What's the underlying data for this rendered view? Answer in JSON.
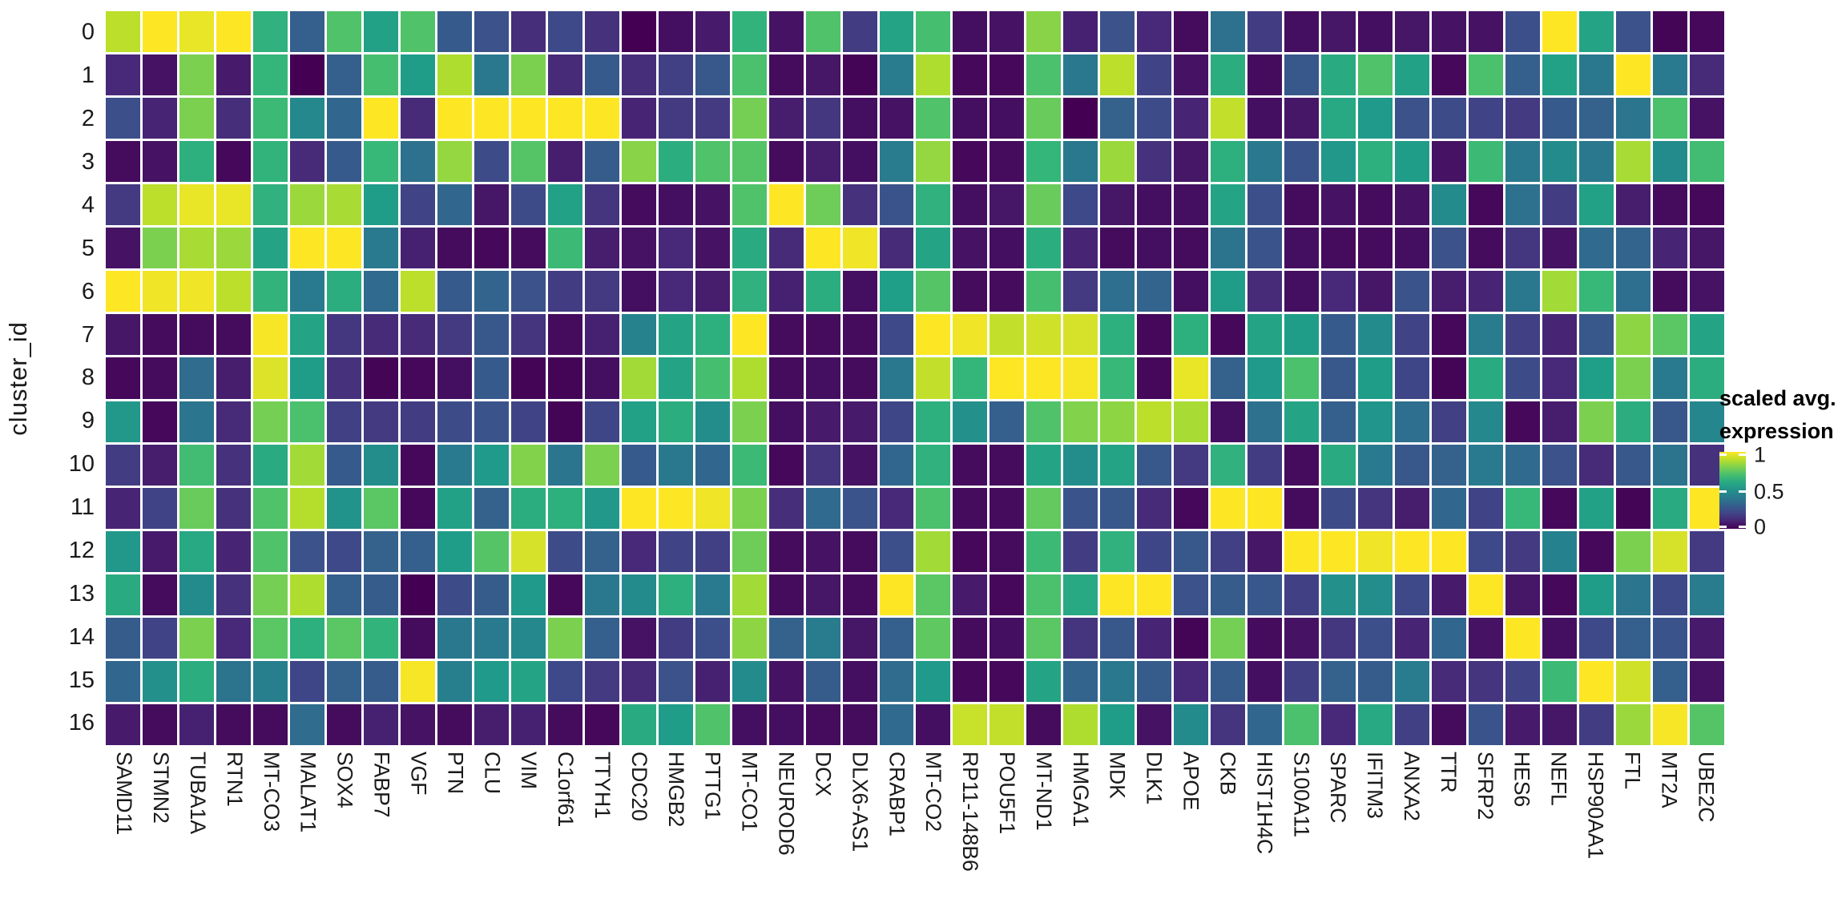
{
  "figure": {
    "y_axis_title": "cluster_id"
  },
  "legend": {
    "title_line1": "scaled avg.",
    "title_line2": "expression",
    "tick_labels": [
      "1",
      "0.5",
      "0"
    ]
  },
  "colors": {
    "background": "#ffffff",
    "viridis_low": "#440154",
    "viridis_mid": "#21918c",
    "viridis_high": "#fde725"
  },
  "chart_data": {
    "type": "heatmap",
    "title": "",
    "xlabel": "",
    "ylabel": "cluster_id",
    "legend_title": "scaled avg. expression",
    "colormap": "viridis",
    "value_range": [
      0,
      1
    ],
    "color_scale_ticks": [
      1,
      0.5,
      0
    ],
    "grid": false,
    "legend_position": "right",
    "x_categories": [
      "SAMD11",
      "STMN2",
      "TUBA1A",
      "RTN1",
      "MT-CO3",
      "MALAT1",
      "SOX4",
      "FABP7",
      "VGF",
      "PTN",
      "CLU",
      "VIM",
      "C1orf61",
      "TTYH1",
      "CDC20",
      "HMGB2",
      "PTTG1",
      "MT-CO1",
      "NEUROD6",
      "DCX",
      "DLX6-AS1",
      "CRABP1",
      "MT-CO2",
      "RP11-148B6",
      "POU5F1",
      "MT-ND1",
      "HMGA1",
      "MDK",
      "DLK1",
      "APOE",
      "CKB",
      "HIST1H4C",
      "S100A11",
      "SPARC",
      "IFITM3",
      "ANXA2",
      "TTR",
      "SFRP2",
      "HES6",
      "NEFL",
      "HSP90AA1",
      "FTL",
      "MT2A",
      "UBE2C"
    ],
    "y_categories": [
      "0",
      "1",
      "2",
      "3",
      "4",
      "5",
      "6",
      "7",
      "8",
      "9",
      "10",
      "11",
      "12",
      "13",
      "14",
      "15",
      "16"
    ],
    "values": [
      [
        0.9,
        1.0,
        0.97,
        1.0,
        0.64,
        0.3,
        0.72,
        0.57,
        0.72,
        0.28,
        0.25,
        0.13,
        0.22,
        0.14,
        0.0,
        0.04,
        0.07,
        0.65,
        0.05,
        0.72,
        0.18,
        0.58,
        0.7,
        0.04,
        0.05,
        0.82,
        0.09,
        0.25,
        0.11,
        0.03,
        0.37,
        0.18,
        0.04,
        0.06,
        0.04,
        0.06,
        0.05,
        0.05,
        0.24,
        1.0,
        0.58,
        0.25,
        0.01,
        0.02
      ],
      [
        0.11,
        0.05,
        0.8,
        0.07,
        0.66,
        0.0,
        0.3,
        0.7,
        0.55,
        0.88,
        0.4,
        0.8,
        0.12,
        0.28,
        0.13,
        0.19,
        0.27,
        0.71,
        0.03,
        0.06,
        0.01,
        0.42,
        0.88,
        0.02,
        0.02,
        0.71,
        0.4,
        0.9,
        0.2,
        0.05,
        0.62,
        0.03,
        0.27,
        0.61,
        0.72,
        0.57,
        0.02,
        0.71,
        0.3,
        0.57,
        0.4,
        1.0,
        0.41,
        0.12
      ],
      [
        0.24,
        0.1,
        0.8,
        0.13,
        0.68,
        0.47,
        0.33,
        1.0,
        0.12,
        1.0,
        1.0,
        1.0,
        1.0,
        1.0,
        0.1,
        0.17,
        0.17,
        0.79,
        0.08,
        0.16,
        0.04,
        0.05,
        0.72,
        0.04,
        0.04,
        0.77,
        0.0,
        0.31,
        0.23,
        0.1,
        0.91,
        0.04,
        0.06,
        0.6,
        0.54,
        0.25,
        0.23,
        0.2,
        0.17,
        0.28,
        0.31,
        0.39,
        0.71,
        0.05
      ],
      [
        0.03,
        0.05,
        0.63,
        0.02,
        0.65,
        0.12,
        0.28,
        0.67,
        0.37,
        0.84,
        0.23,
        0.73,
        0.08,
        0.29,
        0.82,
        0.62,
        0.72,
        0.73,
        0.03,
        0.08,
        0.04,
        0.42,
        0.84,
        0.02,
        0.03,
        0.66,
        0.4,
        0.85,
        0.14,
        0.06,
        0.63,
        0.4,
        0.26,
        0.53,
        0.63,
        0.55,
        0.05,
        0.68,
        0.4,
        0.48,
        0.4,
        0.87,
        0.48,
        0.69
      ],
      [
        0.17,
        0.9,
        0.97,
        0.97,
        0.64,
        0.85,
        0.87,
        0.55,
        0.2,
        0.33,
        0.06,
        0.23,
        0.57,
        0.15,
        0.03,
        0.04,
        0.05,
        0.72,
        1.0,
        0.78,
        0.14,
        0.26,
        0.64,
        0.04,
        0.06,
        0.77,
        0.22,
        0.06,
        0.04,
        0.04,
        0.58,
        0.24,
        0.03,
        0.05,
        0.03,
        0.05,
        0.48,
        0.02,
        0.37,
        0.18,
        0.57,
        0.08,
        0.03,
        0.02
      ],
      [
        0.05,
        0.8,
        0.87,
        0.85,
        0.58,
        1.0,
        1.0,
        0.41,
        0.09,
        0.03,
        0.02,
        0.03,
        0.68,
        0.08,
        0.05,
        0.11,
        0.05,
        0.61,
        0.12,
        1.0,
        0.98,
        0.12,
        0.58,
        0.05,
        0.04,
        0.62,
        0.1,
        0.03,
        0.04,
        0.03,
        0.38,
        0.26,
        0.04,
        0.03,
        0.03,
        0.04,
        0.25,
        0.03,
        0.16,
        0.05,
        0.34,
        0.32,
        0.1,
        0.06
      ],
      [
        1.0,
        0.98,
        0.98,
        0.9,
        0.65,
        0.41,
        0.62,
        0.34,
        0.9,
        0.28,
        0.32,
        0.25,
        0.18,
        0.17,
        0.04,
        0.11,
        0.08,
        0.64,
        0.09,
        0.62,
        0.04,
        0.56,
        0.73,
        0.03,
        0.03,
        0.7,
        0.17,
        0.36,
        0.32,
        0.04,
        0.55,
        0.12,
        0.04,
        0.11,
        0.06,
        0.26,
        0.08,
        0.1,
        0.4,
        0.86,
        0.67,
        0.36,
        0.03,
        0.05
      ],
      [
        0.06,
        0.03,
        0.03,
        0.03,
        0.99,
        0.58,
        0.16,
        0.12,
        0.12,
        0.17,
        0.27,
        0.15,
        0.03,
        0.09,
        0.45,
        0.58,
        0.63,
        1.0,
        0.03,
        0.03,
        0.03,
        0.22,
        1.0,
        0.98,
        0.91,
        0.93,
        0.94,
        0.63,
        0.02,
        0.63,
        0.02,
        0.58,
        0.55,
        0.28,
        0.48,
        0.2,
        0.02,
        0.42,
        0.19,
        0.1,
        0.27,
        0.83,
        0.74,
        0.58
      ],
      [
        0.02,
        0.03,
        0.35,
        0.08,
        0.95,
        0.55,
        0.14,
        0.01,
        0.02,
        0.04,
        0.28,
        0.01,
        0.01,
        0.04,
        0.86,
        0.58,
        0.7,
        0.88,
        0.03,
        0.04,
        0.03,
        0.4,
        0.91,
        0.66,
        1.0,
        1.0,
        0.99,
        0.67,
        0.02,
        0.97,
        0.31,
        0.54,
        0.71,
        0.27,
        0.55,
        0.21,
        0.01,
        0.61,
        0.23,
        0.11,
        0.56,
        0.8,
        0.41,
        0.62
      ],
      [
        0.53,
        0.02,
        0.39,
        0.12,
        0.79,
        0.71,
        0.19,
        0.17,
        0.18,
        0.23,
        0.26,
        0.2,
        0.01,
        0.21,
        0.57,
        0.62,
        0.49,
        0.8,
        0.04,
        0.07,
        0.07,
        0.21,
        0.63,
        0.5,
        0.3,
        0.72,
        0.81,
        0.83,
        0.9,
        0.87,
        0.04,
        0.37,
        0.58,
        0.3,
        0.52,
        0.36,
        0.19,
        0.47,
        0.02,
        0.08,
        0.8,
        0.62,
        0.27,
        0.46
      ],
      [
        0.18,
        0.08,
        0.69,
        0.14,
        0.61,
        0.86,
        0.28,
        0.49,
        0.02,
        0.41,
        0.54,
        0.81,
        0.39,
        0.8,
        0.28,
        0.4,
        0.33,
        0.68,
        0.02,
        0.15,
        0.05,
        0.33,
        0.64,
        0.03,
        0.03,
        0.58,
        0.49,
        0.58,
        0.27,
        0.17,
        0.64,
        0.18,
        0.03,
        0.61,
        0.41,
        0.27,
        0.31,
        0.41,
        0.34,
        0.25,
        0.12,
        0.27,
        0.38,
        0.14
      ],
      [
        0.1,
        0.2,
        0.77,
        0.14,
        0.72,
        0.89,
        0.51,
        0.74,
        0.02,
        0.57,
        0.31,
        0.62,
        0.63,
        0.53,
        1.0,
        1.0,
        0.98,
        0.8,
        0.13,
        0.34,
        0.26,
        0.11,
        0.71,
        0.03,
        0.03,
        0.76,
        0.26,
        0.27,
        0.12,
        0.02,
        1.0,
        1.0,
        0.03,
        0.23,
        0.15,
        0.08,
        0.33,
        0.2,
        0.67,
        0.02,
        0.57,
        0.01,
        0.61,
        1.0
      ],
      [
        0.53,
        0.07,
        0.6,
        0.1,
        0.72,
        0.25,
        0.22,
        0.31,
        0.3,
        0.55,
        0.73,
        0.94,
        0.23,
        0.31,
        0.11,
        0.2,
        0.19,
        0.78,
        0.03,
        0.05,
        0.03,
        0.24,
        0.86,
        0.02,
        0.03,
        0.68,
        0.18,
        0.64,
        0.21,
        0.27,
        0.19,
        0.06,
        1.0,
        1.0,
        0.98,
        1.0,
        1.0,
        0.22,
        0.17,
        0.44,
        0.02,
        0.8,
        0.94,
        0.17
      ],
      [
        0.61,
        0.03,
        0.48,
        0.14,
        0.79,
        0.88,
        0.3,
        0.29,
        0.0,
        0.23,
        0.29,
        0.54,
        0.02,
        0.4,
        0.48,
        0.63,
        0.41,
        0.86,
        0.03,
        0.06,
        0.03,
        1.0,
        0.74,
        0.07,
        0.02,
        0.71,
        0.6,
        1.0,
        1.0,
        0.25,
        0.29,
        0.27,
        0.19,
        0.5,
        0.49,
        0.22,
        0.07,
        1.0,
        0.06,
        0.02,
        0.55,
        0.39,
        0.22,
        0.42
      ],
      [
        0.29,
        0.2,
        0.8,
        0.11,
        0.74,
        0.63,
        0.74,
        0.65,
        0.03,
        0.4,
        0.41,
        0.47,
        0.8,
        0.3,
        0.05,
        0.18,
        0.24,
        0.83,
        0.31,
        0.42,
        0.06,
        0.3,
        0.75,
        0.03,
        0.04,
        0.74,
        0.15,
        0.27,
        0.1,
        0.01,
        0.79,
        0.03,
        0.05,
        0.16,
        0.24,
        0.1,
        0.33,
        0.05,
        1.0,
        0.04,
        0.22,
        0.3,
        0.26,
        0.07
      ],
      [
        0.33,
        0.5,
        0.62,
        0.38,
        0.43,
        0.21,
        0.31,
        0.29,
        0.99,
        0.43,
        0.54,
        0.58,
        0.22,
        0.17,
        0.12,
        0.25,
        0.09,
        0.48,
        0.05,
        0.29,
        0.04,
        0.35,
        0.54,
        0.02,
        0.02,
        0.58,
        0.32,
        0.4,
        0.29,
        0.11,
        0.29,
        0.04,
        0.19,
        0.31,
        0.29,
        0.42,
        0.12,
        0.15,
        0.2,
        0.68,
        1.0,
        0.93,
        0.3,
        0.05
      ],
      [
        0.07,
        0.03,
        0.09,
        0.03,
        0.03,
        0.35,
        0.03,
        0.09,
        0.05,
        0.03,
        0.08,
        0.09,
        0.03,
        0.02,
        0.61,
        0.55,
        0.72,
        0.04,
        0.04,
        0.03,
        0.03,
        0.34,
        0.04,
        0.92,
        0.91,
        0.03,
        0.88,
        0.55,
        0.05,
        0.48,
        0.15,
        0.33,
        0.71,
        0.11,
        0.6,
        0.19,
        0.03,
        0.26,
        0.07,
        0.06,
        0.18,
        0.85,
        0.99,
        0.73
      ]
    ]
  }
}
